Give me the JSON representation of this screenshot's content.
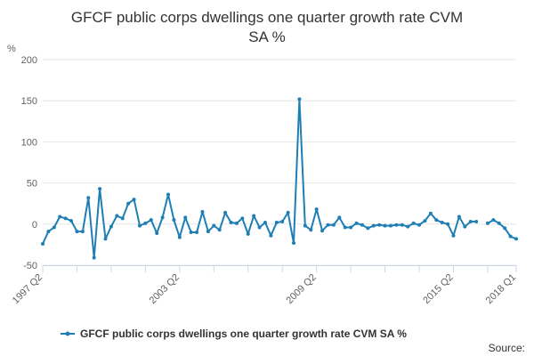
{
  "chart_data": {
    "type": "line",
    "title_lines": [
      "GFCF public corps dwellings one quarter growth rate CVM",
      "SA %"
    ],
    "ylabel": "%",
    "ylim": [
      -50,
      200
    ],
    "yticks": [
      "200",
      "150",
      "100",
      "50",
      "0",
      "-50"
    ],
    "ytick_values": [
      200,
      150,
      100,
      50,
      0,
      -50
    ],
    "xtick_labels": [
      "1997 Q2",
      "2003 Q2",
      "2009 Q2",
      "2015 Q2",
      "2018 Q1"
    ],
    "xtick_index": [
      0,
      24,
      48,
      72,
      83
    ],
    "grid": true,
    "legend_position": "bottom",
    "source_label": "Source:",
    "colors": {
      "line": "#1f7fb4",
      "grid": "#e6e6e6",
      "axis": "#ccd6eb"
    },
    "series": [
      {
        "name": "GFCF public corps dwellings one quarter growth rate CVM SA %",
        "start": "1997 Q2",
        "end": "2018 Q1",
        "values": [
          -24,
          -9,
          -4,
          9,
          7,
          4,
          -9,
          -9,
          32,
          -41,
          43,
          -18,
          -3,
          10,
          7,
          25,
          30,
          -2,
          1,
          5,
          -11,
          8,
          36,
          5,
          -16,
          8,
          -10,
          -10,
          15,
          -9,
          -2,
          -7,
          14,
          2,
          1,
          7,
          -12,
          10,
          -4,
          2,
          -14,
          2,
          3,
          14,
          -23,
          152,
          -2,
          -7,
          18,
          -8,
          -1,
          -1,
          8,
          -4,
          -4,
          1,
          -1,
          -5,
          -2,
          -1,
          -2,
          -2,
          -1,
          -1,
          -3,
          1,
          -1,
          4,
          13,
          5,
          2,
          0,
          -14,
          9,
          -3,
          3,
          3,
          null,
          1,
          5,
          1,
          -5,
          -15,
          -18
        ]
      }
    ]
  }
}
